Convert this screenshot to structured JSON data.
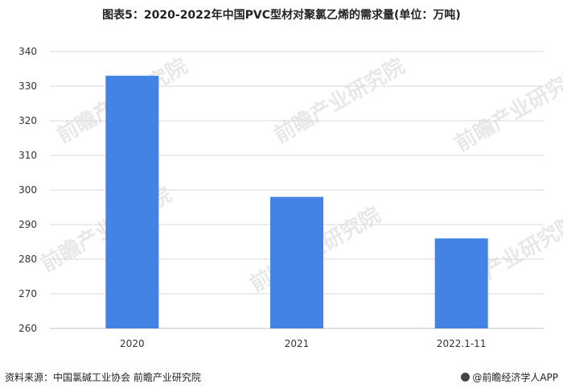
{
  "title": "图表5：2020-2022年中国PVC型材对聚氯乙烯的需求量(单位：万吨)",
  "source": "资料来源：中国氯碱工业协会 前瞻产业研究院",
  "brand": "@前瞻经济学人APP",
  "watermark": "前瞻产业研究院",
  "colors": {
    "bar": "#4383e3",
    "grid": "#d9d9d9",
    "axis": "#bfbfbf"
  },
  "chart_data": {
    "type": "bar",
    "title": "图表5：2020-2022年中国PVC型材对聚氯乙烯的需求量(单位：万吨)",
    "categories": [
      "2020",
      "2021",
      "2022.1-11"
    ],
    "values": [
      333,
      298,
      286
    ],
    "ylim": [
      260,
      340
    ],
    "yticks": [
      260,
      270,
      280,
      290,
      300,
      310,
      320,
      330,
      340
    ],
    "xlabel": "",
    "ylabel": "",
    "grid": true
  }
}
